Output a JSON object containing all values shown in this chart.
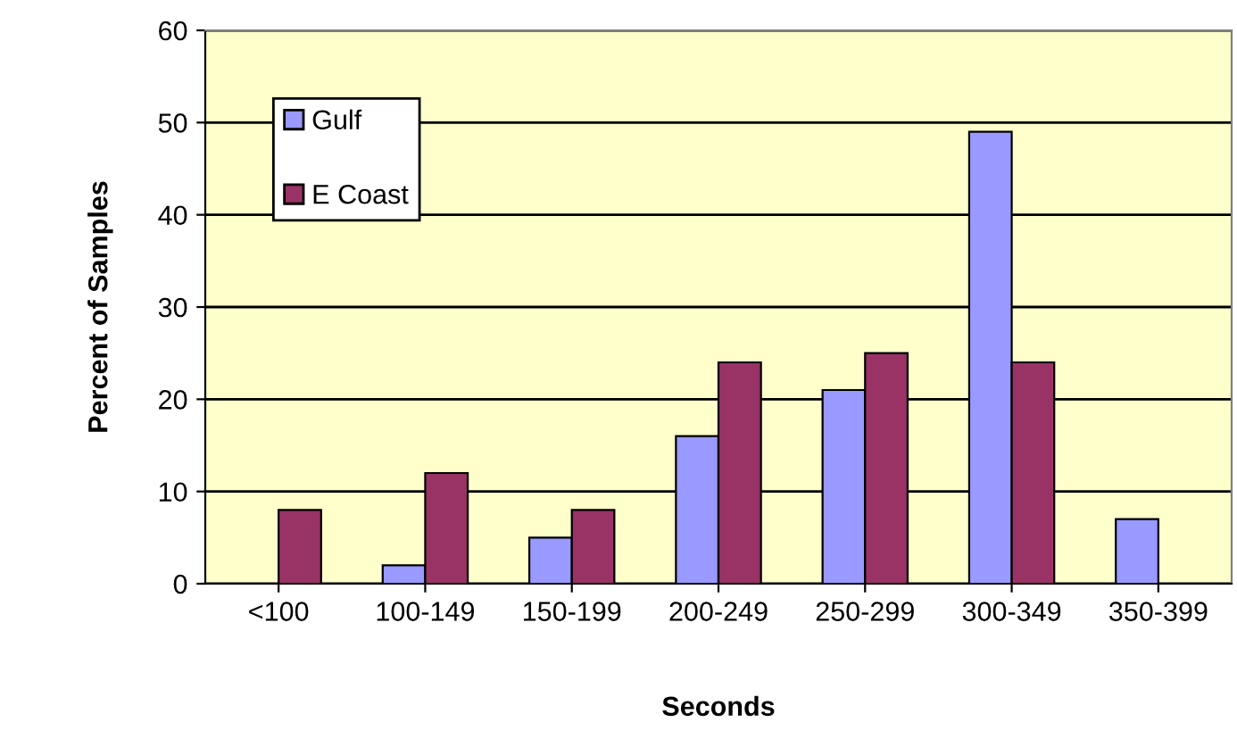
{
  "chart_data": {
    "type": "bar",
    "xlabel": "Seconds",
    "ylabel": "Percent of Samples",
    "categories": [
      "<100",
      "100-149",
      "150-199",
      "200-249",
      "250-299",
      "300-349",
      "350-399"
    ],
    "series": [
      {
        "name": "Gulf",
        "color": "#9999ff",
        "values": [
          null,
          2,
          5,
          16,
          21,
          49,
          7
        ]
      },
      {
        "name": "E Coast",
        "color": "#993366",
        "values": [
          8,
          12,
          8,
          24,
          25,
          24,
          null
        ]
      }
    ],
    "ylim": [
      0,
      60
    ],
    "yticks": [
      0,
      10,
      20,
      30,
      40,
      50,
      60
    ],
    "grid": "y",
    "legend": "top left"
  }
}
